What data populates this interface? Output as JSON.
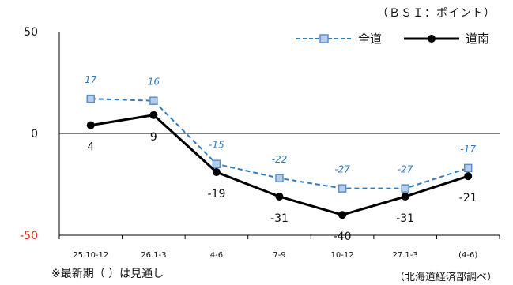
{
  "unit_note": "（ＢＳＩ：ポイント）",
  "footnote_left": "※最新期（ ）は見通し",
  "footnote_right": "（北海道経済部調べ）",
  "colors": {
    "zenkoku": "#2e7bbf",
    "zenkoku_marker_fill": "#b9cde8",
    "zenkoku_marker_edge": "#5b8fd0",
    "donan": "#000000",
    "negative_tick": "#e0241b",
    "axis": "#000000"
  },
  "chart_data": {
    "type": "line",
    "categories": [
      "25.10-12",
      "26.1-3",
      "4-6",
      "7-9",
      "10-12",
      "27.1-3",
      "(4-6)"
    ],
    "series": [
      {
        "name": "全道",
        "values": [
          17,
          16,
          -15,
          -22,
          -27,
          -27,
          -17
        ]
      },
      {
        "name": "道南",
        "values": [
          4,
          9,
          -19,
          -31,
          -40,
          -31,
          -21
        ]
      }
    ],
    "y_ticks": [
      {
        "value": 50,
        "label": "50"
      },
      {
        "value": 0,
        "label": "0"
      },
      {
        "value": -50,
        "label": "-50"
      }
    ],
    "ylim": [
      -50,
      50
    ],
    "legend_position": "top-right",
    "grid": false
  }
}
